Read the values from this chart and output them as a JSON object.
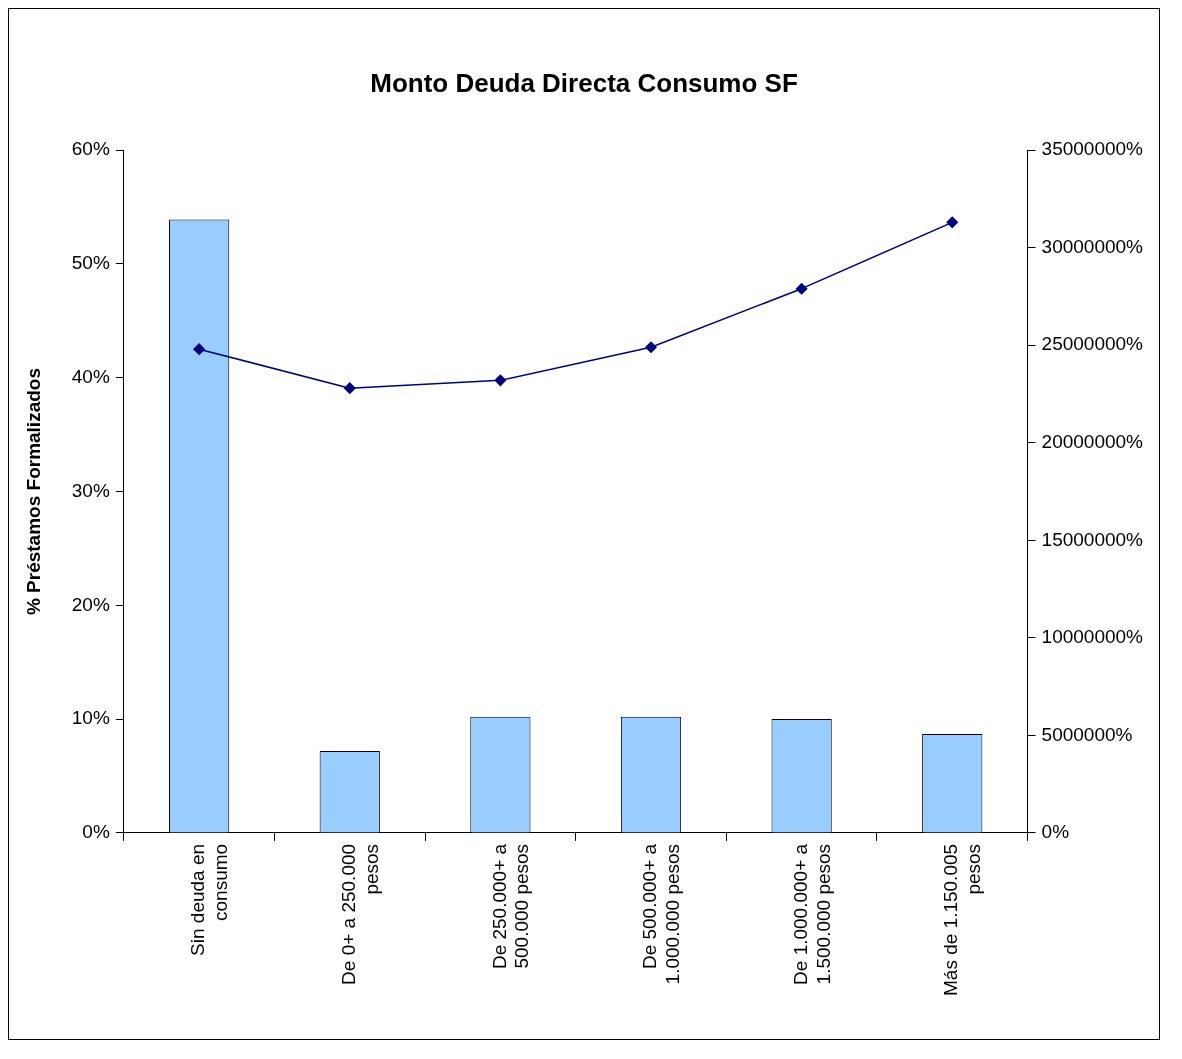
{
  "chart_data": {
    "type": "bar",
    "title": "Monto Deuda Directa Consumo SF",
    "ylabel": "% Préstamos Formalizados",
    "categories": [
      "Sin deuda en consumo",
      "De 0+ a 250.000 pesos",
      "De 250.000+ a 500.000 pesos",
      "De 500.000+ a 1.000.000 pesos",
      "De 1.000.000+ a 1.500.000 pesos",
      "Más de 1.150.005 pesos"
    ],
    "series": [
      {
        "color": "#99ccff",
        "values": [
          53.9,
          7.2,
          10.2,
          10.2,
          10.0,
          8.7
        ]
      },
      {
        "type": "line",
        "axis": "y2",
        "color": "#000080",
        "marker": "diamond",
        "line_style": "solid",
        "values": [
          24800000,
          22800000,
          23200000,
          24900000,
          27900000,
          31300000
        ]
      }
    ],
    "ylim": [
      0,
      60
    ],
    "yticks": [
      {
        "value": 0,
        "label": "0%"
      },
      {
        "value": 10,
        "label": "10%"
      },
      {
        "value": 20,
        "label": "20%"
      },
      {
        "value": 30,
        "label": "30%"
      },
      {
        "value": 40,
        "label": "40%"
      },
      {
        "value": 50,
        "label": "50%"
      },
      {
        "value": 60,
        "label": "60%"
      }
    ],
    "y2lim": [
      0,
      35000000
    ],
    "y2ticks": [
      {
        "value": 0,
        "label": "0%"
      },
      {
        "value": 5000000,
        "label": "5000000%"
      },
      {
        "value": 10000000,
        "label": "10000000%"
      },
      {
        "value": 15000000,
        "label": "15000000%"
      },
      {
        "value": 20000000,
        "label": "20000000%"
      },
      {
        "value": 25000000,
        "label": "25000000%"
      },
      {
        "value": 30000000,
        "label": "30000000%"
      },
      {
        "value": 35000000,
        "label": "35000000%"
      }
    ],
    "grid": false,
    "legend": false
  }
}
